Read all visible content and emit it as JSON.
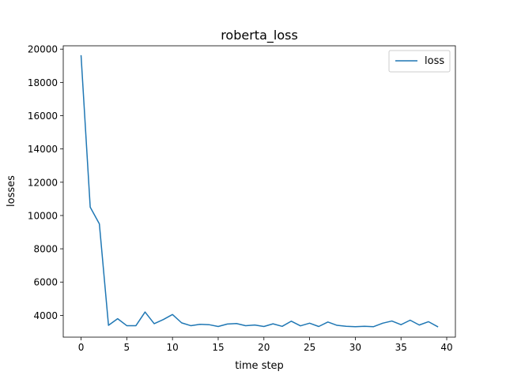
{
  "chart_data": {
    "type": "line",
    "title": "roberta_loss",
    "xlabel": "time step",
    "ylabel": "losses",
    "xlim": [
      -1.95,
      40.95
    ],
    "ylim": [
      2690,
      20200
    ],
    "xticks": [
      0,
      5,
      10,
      15,
      20,
      25,
      30,
      35,
      40
    ],
    "yticks": [
      4000,
      6000,
      8000,
      10000,
      12000,
      14000,
      16000,
      18000,
      20000
    ],
    "grid": false,
    "legend_position": "top-right",
    "series": [
      {
        "name": "loss",
        "color": "#1f77b4",
        "x": [
          0,
          1,
          2,
          3,
          4,
          5,
          6,
          7,
          8,
          9,
          10,
          11,
          12,
          13,
          14,
          15,
          16,
          17,
          18,
          19,
          20,
          21,
          22,
          23,
          24,
          25,
          26,
          27,
          28,
          29,
          30,
          31,
          32,
          33,
          34,
          35,
          36,
          37,
          38,
          39
        ],
        "values": [
          19600,
          10500,
          9500,
          3400,
          3800,
          3380,
          3380,
          4200,
          3500,
          3750,
          4050,
          3550,
          3380,
          3460,
          3440,
          3330,
          3480,
          3510,
          3380,
          3420,
          3330,
          3490,
          3340,
          3650,
          3370,
          3530,
          3330,
          3600,
          3400,
          3340,
          3320,
          3340,
          3320,
          3530,
          3660,
          3440,
          3710,
          3420,
          3620,
          3320
        ]
      }
    ]
  }
}
